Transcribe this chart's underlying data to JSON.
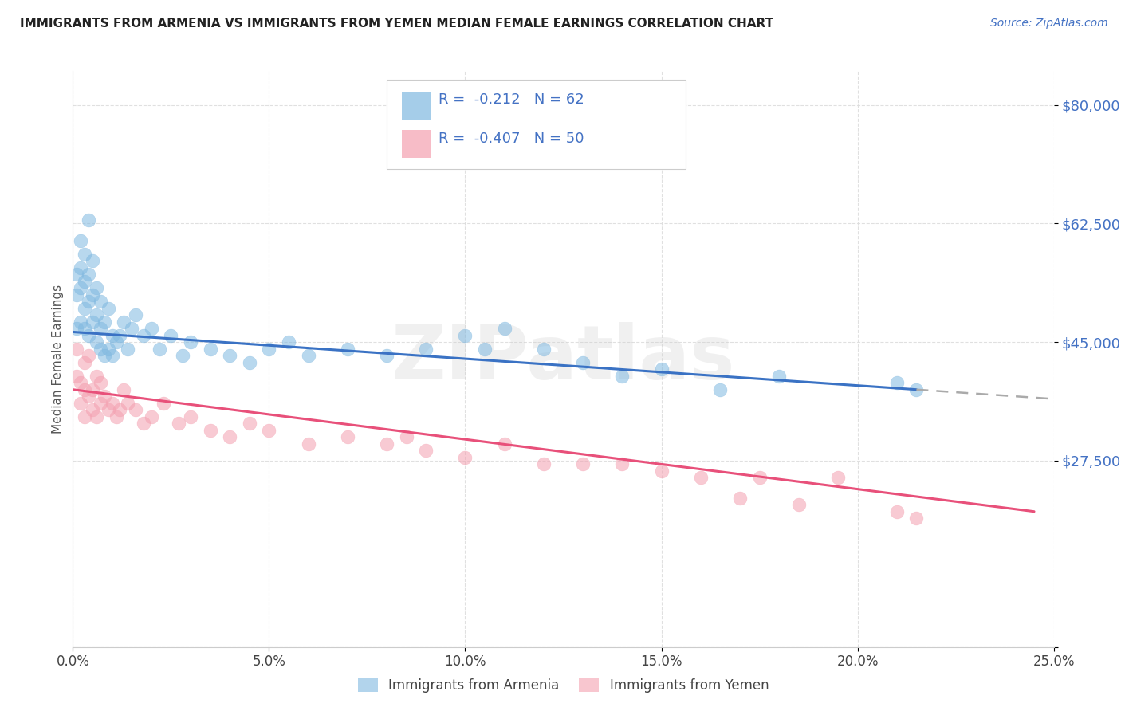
{
  "title": "IMMIGRANTS FROM ARMENIA VS IMMIGRANTS FROM YEMEN MEDIAN FEMALE EARNINGS CORRELATION CHART",
  "source": "Source: ZipAtlas.com",
  "ylabel": "Median Female Earnings",
  "ytick_vals": [
    0,
    27500,
    45000,
    62500,
    80000
  ],
  "ytick_labels": [
    "",
    "$27,500",
    "$45,000",
    "$62,500",
    "$80,000"
  ],
  "xtick_vals": [
    0.0,
    0.05,
    0.1,
    0.15,
    0.2,
    0.25
  ],
  "xtick_labels": [
    "0.0%",
    "5.0%",
    "10.0%",
    "15.0%",
    "20.0%",
    "25.0%"
  ],
  "xlim": [
    0.0,
    0.25
  ],
  "ylim": [
    0,
    85000
  ],
  "watermark": "ZIPatlas",
  "blue_scatter_color": "#7fb8e0",
  "pink_scatter_color": "#f4a0b0",
  "blue_line_color": "#3a72c4",
  "pink_line_color": "#e8507a",
  "gray_dash_color": "#aaaaaa",
  "y_tick_color": "#4472c4",
  "title_color": "#222222",
  "source_color": "#4472c4",
  "legend_text_color": "#4472c4",
  "legend_label_armenia": "Immigrants from Armenia",
  "legend_label_yemen": "Immigrants from Yemen",
  "armenia_x": [
    0.001,
    0.001,
    0.001,
    0.002,
    0.002,
    0.002,
    0.002,
    0.003,
    0.003,
    0.003,
    0.003,
    0.004,
    0.004,
    0.004,
    0.004,
    0.005,
    0.005,
    0.005,
    0.006,
    0.006,
    0.006,
    0.007,
    0.007,
    0.007,
    0.008,
    0.008,
    0.009,
    0.009,
    0.01,
    0.01,
    0.011,
    0.012,
    0.013,
    0.014,
    0.015,
    0.016,
    0.018,
    0.02,
    0.022,
    0.025,
    0.028,
    0.03,
    0.035,
    0.04,
    0.045,
    0.05,
    0.055,
    0.06,
    0.07,
    0.08,
    0.09,
    0.1,
    0.105,
    0.11,
    0.12,
    0.13,
    0.14,
    0.15,
    0.165,
    0.18,
    0.21,
    0.215
  ],
  "armenia_y": [
    47000,
    52000,
    55000,
    48000,
    53000,
    56000,
    60000,
    50000,
    47000,
    54000,
    58000,
    46000,
    51000,
    55000,
    63000,
    48000,
    52000,
    57000,
    45000,
    49000,
    53000,
    44000,
    47000,
    51000,
    43000,
    48000,
    44000,
    50000,
    43000,
    46000,
    45000,
    46000,
    48000,
    44000,
    47000,
    49000,
    46000,
    47000,
    44000,
    46000,
    43000,
    45000,
    44000,
    43000,
    42000,
    44000,
    45000,
    43000,
    44000,
    43000,
    44000,
    46000,
    44000,
    47000,
    44000,
    42000,
    40000,
    41000,
    38000,
    40000,
    39000,
    38000
  ],
  "yemen_x": [
    0.001,
    0.001,
    0.002,
    0.002,
    0.003,
    0.003,
    0.003,
    0.004,
    0.004,
    0.005,
    0.005,
    0.006,
    0.006,
    0.007,
    0.007,
    0.008,
    0.009,
    0.01,
    0.011,
    0.012,
    0.013,
    0.014,
    0.016,
    0.018,
    0.02,
    0.023,
    0.027,
    0.03,
    0.035,
    0.04,
    0.045,
    0.05,
    0.06,
    0.07,
    0.08,
    0.085,
    0.09,
    0.1,
    0.11,
    0.12,
    0.13,
    0.14,
    0.15,
    0.16,
    0.17,
    0.175,
    0.185,
    0.195,
    0.21,
    0.215
  ],
  "yemen_y": [
    40000,
    44000,
    36000,
    39000,
    38000,
    34000,
    42000,
    37000,
    43000,
    35000,
    38000,
    34000,
    40000,
    36000,
    39000,
    37000,
    35000,
    36000,
    34000,
    35000,
    38000,
    36000,
    35000,
    33000,
    34000,
    36000,
    33000,
    34000,
    32000,
    31000,
    33000,
    32000,
    30000,
    31000,
    30000,
    31000,
    29000,
    28000,
    30000,
    27000,
    27000,
    27000,
    26000,
    25000,
    22000,
    25000,
    21000,
    25000,
    20000,
    19000
  ]
}
